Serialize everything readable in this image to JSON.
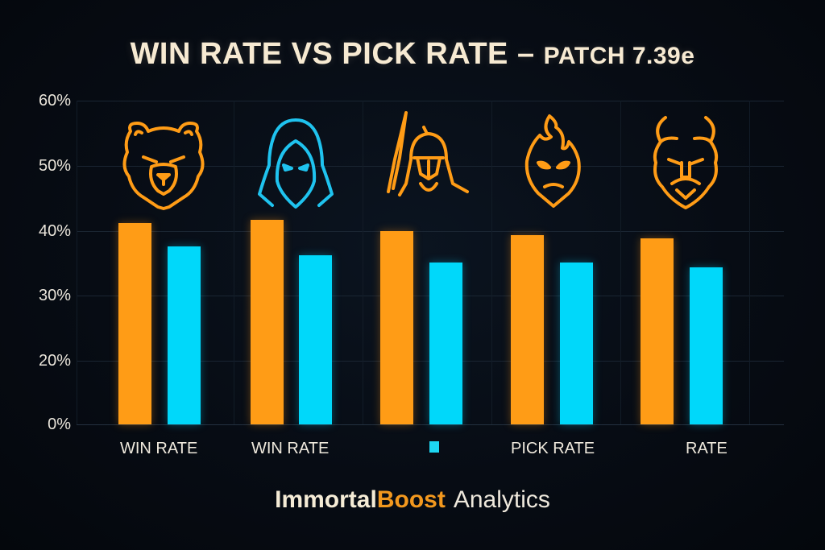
{
  "title": {
    "main": "WIN RATE VS PICK RATE – ",
    "sub": "PATCH 7.39e"
  },
  "colors": {
    "win_rate": "#ff9c16",
    "pick_rate": "#00d8fa",
    "background": "#070c14",
    "text": "#f7ead2"
  },
  "y_axis": {
    "ticks": [
      "60%",
      "50%",
      "40%",
      "30%",
      "20%",
      "0%"
    ]
  },
  "x_labels": [
    "WIN RATE",
    "WIN RATE",
    "",
    "PICK RATE",
    "RATE"
  ],
  "icons": [
    "bear-icon",
    "hooded-assassin-icon",
    "spartan-warrior-icon",
    "flame-spirit-icon",
    "horned-demon-icon"
  ],
  "footer": {
    "brand_part1": "Immortal",
    "brand_part2": "Boost",
    "brand_suffix": "Analytics"
  },
  "chart_data": {
    "type": "bar",
    "title": "WIN RATE VS PICK RATE – PATCH 7.39e",
    "categories": [
      "Bear hero",
      "Hooded assassin",
      "Spartan warrior",
      "Flame spirit",
      "Horned demon"
    ],
    "category_tick_labels": [
      "WIN RATE",
      "WIN RATE",
      "",
      "PICK RATE",
      "RATE"
    ],
    "series": [
      {
        "name": "Win Rate",
        "color": "#ff9c16",
        "values": [
          41.2,
          41.7,
          40.0,
          39.4,
          38.9
        ]
      },
      {
        "name": "Pick Rate",
        "color": "#00d8fa",
        "values": [
          37.6,
          36.2,
          35.1,
          35.1,
          34.4
        ]
      }
    ],
    "xlabel": "",
    "ylabel": "",
    "y_tick_labels": [
      "0%",
      "20%",
      "30%",
      "40%",
      "50%",
      "60%"
    ],
    "ylim": [
      0,
      60
    ],
    "grid": true,
    "legend": "none",
    "footer_text": "ImmortalBoost Analytics"
  }
}
